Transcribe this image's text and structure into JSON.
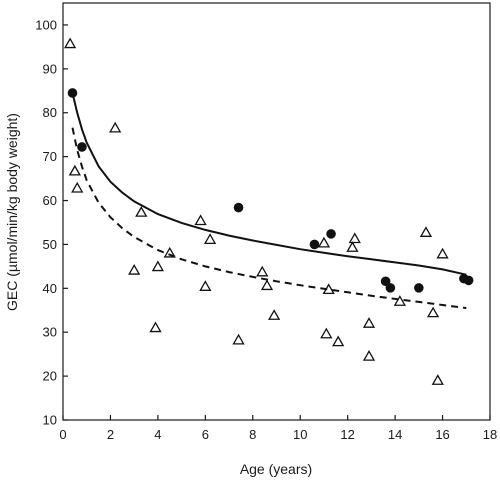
{
  "chart_data": {
    "type": "scatter",
    "xlabel": "Age (years)",
    "ylabel": "GEC (µmol/min/kg body weight)",
    "xlim": [
      0,
      18
    ],
    "ylim": [
      10,
      105
    ],
    "xticks": [
      "0",
      "2",
      "4",
      "6",
      "8",
      "10",
      "12",
      "14",
      "16",
      "18"
    ],
    "yticks": [
      "10",
      "20",
      "30",
      "40",
      "50",
      "60",
      "70",
      "80",
      "90",
      "100"
    ],
    "grid": false,
    "series": [
      {
        "marker": "filled-circle",
        "points": [
          [
            0.4,
            84.5
          ],
          [
            0.8,
            72.2
          ],
          [
            7.4,
            58.4
          ],
          [
            10.6,
            50.0
          ],
          [
            11.3,
            52.4
          ],
          [
            13.6,
            41.6
          ],
          [
            13.8,
            40.1
          ],
          [
            15.0,
            40.1
          ],
          [
            16.9,
            42.2
          ],
          [
            17.1,
            41.8
          ]
        ]
      },
      {
        "marker": "open-triangle",
        "points": [
          [
            0.3,
            95.7
          ],
          [
            0.5,
            66.7
          ],
          [
            0.6,
            62.8
          ],
          [
            2.2,
            76.5
          ],
          [
            3.0,
            44.1
          ],
          [
            3.3,
            57.3
          ],
          [
            3.9,
            31.0
          ],
          [
            4.0,
            44.9
          ],
          [
            4.5,
            48.0
          ],
          [
            5.8,
            55.4
          ],
          [
            6.0,
            40.4
          ],
          [
            6.2,
            51.1
          ],
          [
            7.4,
            28.2
          ],
          [
            8.4,
            43.7
          ],
          [
            8.6,
            40.6
          ],
          [
            8.9,
            33.8
          ],
          [
            11.0,
            50.3
          ],
          [
            11.1,
            29.6
          ],
          [
            11.2,
            39.7
          ],
          [
            11.6,
            27.8
          ],
          [
            12.2,
            49.3
          ],
          [
            12.3,
            51.3
          ],
          [
            12.9,
            32.0
          ],
          [
            12.9,
            24.5
          ],
          [
            14.2,
            37.0
          ],
          [
            15.3,
            52.7
          ],
          [
            15.6,
            34.4
          ],
          [
            15.8,
            19.0
          ],
          [
            16.0,
            47.8
          ]
        ]
      }
    ],
    "fits": [
      {
        "style": "solid",
        "points": [
          [
            0.4,
            84.5
          ],
          [
            0.6,
            80.0
          ],
          [
            0.8,
            76.2
          ],
          [
            1.0,
            73.2
          ],
          [
            1.5,
            67.8
          ],
          [
            2.0,
            64.3
          ],
          [
            2.5,
            61.8
          ],
          [
            3.0,
            59.8
          ],
          [
            4.0,
            56.9
          ],
          [
            5.0,
            54.9
          ],
          [
            6.0,
            53.3
          ],
          [
            7.0,
            52.0
          ],
          [
            8.0,
            50.9
          ],
          [
            9.0,
            49.9
          ],
          [
            10.0,
            48.9
          ],
          [
            11.0,
            48.1
          ],
          [
            12.0,
            47.3
          ],
          [
            13.0,
            46.6
          ],
          [
            14.0,
            45.9
          ],
          [
            15.0,
            45.2
          ],
          [
            16.0,
            44.3
          ],
          [
            17.0,
            43.1
          ]
        ]
      },
      {
        "style": "dashed",
        "points": [
          [
            0.4,
            76.6
          ],
          [
            0.6,
            71.5
          ],
          [
            0.8,
            67.7
          ],
          [
            1.0,
            64.6
          ],
          [
            1.5,
            59.5
          ],
          [
            2.0,
            56.2
          ],
          [
            2.5,
            53.7
          ],
          [
            3.0,
            51.7
          ],
          [
            4.0,
            48.7
          ],
          [
            5.0,
            46.6
          ],
          [
            6.0,
            45.0
          ],
          [
            7.0,
            43.7
          ],
          [
            8.0,
            42.6
          ],
          [
            9.0,
            41.6
          ],
          [
            10.0,
            40.7
          ],
          [
            11.0,
            39.9
          ],
          [
            12.0,
            39.1
          ],
          [
            13.0,
            38.3
          ],
          [
            14.0,
            37.6
          ],
          [
            15.0,
            36.9
          ],
          [
            16.0,
            36.2
          ],
          [
            17.0,
            35.5
          ]
        ]
      }
    ]
  }
}
